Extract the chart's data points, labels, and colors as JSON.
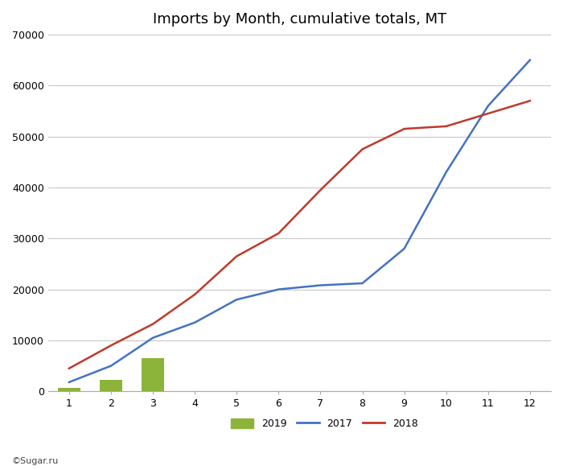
{
  "title": "Imports by Month, cumulative totals, MT",
  "months": [
    1,
    2,
    3,
    4,
    5,
    6,
    7,
    8,
    9,
    10,
    11,
    12
  ],
  "data_2017": [
    1800,
    5000,
    10500,
    13500,
    18000,
    20000,
    20800,
    21200,
    28000,
    43000,
    56000,
    65000
  ],
  "data_2018": [
    4500,
    9000,
    13200,
    19000,
    26500,
    31000,
    39500,
    47500,
    51500,
    52000,
    54500,
    57000
  ],
  "data_2019_bars": [
    700,
    2300,
    6500,
    null,
    null,
    null,
    null,
    null,
    null,
    null,
    null,
    null
  ],
  "bar_color": "#8CB33A",
  "line_2017_color": "#4472C4",
  "line_2018_color": "#C0392B",
  "ylim": [
    0,
    70000
  ],
  "yticks": [
    0,
    10000,
    20000,
    30000,
    40000,
    50000,
    60000,
    70000
  ],
  "xlim": [
    0.5,
    12.5
  ],
  "xticks": [
    1,
    2,
    3,
    4,
    5,
    6,
    7,
    8,
    9,
    10,
    11,
    12
  ],
  "watermark": "©Sugar.ru",
  "background_color": "#FFFFFF",
  "plot_bg_color": "#FFFFFF",
  "grid_color": "#C8C8C8",
  "border_color": "#AAAAAA"
}
